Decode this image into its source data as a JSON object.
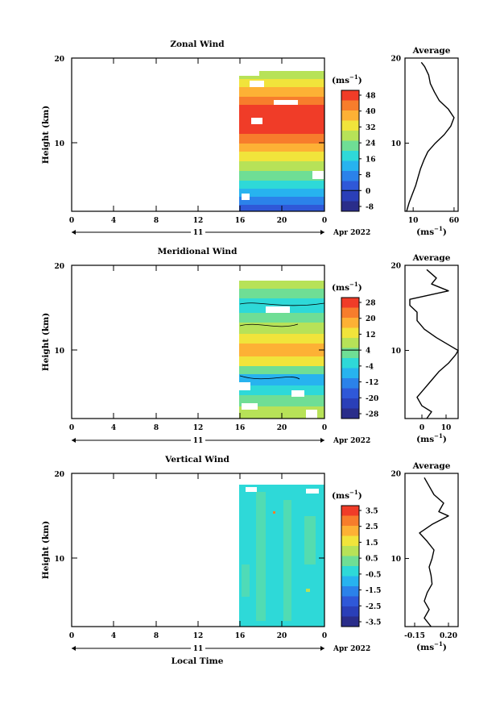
{
  "chart_data": [
    {
      "type": "heatmap",
      "title": "Zonal Wind",
      "ylabel": "Height (km)",
      "yticks": [
        "20",
        "10"
      ],
      "xticks": [
        "0",
        "4",
        "8",
        "12",
        "16",
        "20",
        "0"
      ],
      "date_day": "11",
      "date_month": "Apr 2022",
      "colorbar": {
        "unit_base": "(ms",
        "unit_exp": "−1",
        "unit_close": ")",
        "labels": [
          "48",
          "40",
          "32",
          "24",
          "16",
          "8",
          "0",
          "-8"
        ],
        "colors": [
          "#f03c28",
          "#f77d2c",
          "#fdb135",
          "#f1e43b",
          "#b7e258",
          "#6fde95",
          "#2ed9d8",
          "#27b3ef",
          "#2b82ea",
          "#2f58d8",
          "#2a3fb8",
          "#2a2d8a"
        ]
      },
      "profile": {
        "title": "Average",
        "yticks": [
          "20",
          "10"
        ],
        "xticks": [
          "10",
          "60"
        ],
        "xlabel_base": "(ms",
        "xlabel_exp": "−1",
        "xlabel_close": ")",
        "xlim": [
          0,
          65
        ],
        "ylim": [
          2,
          20
        ],
        "height_km": [
          2.0,
          3.0,
          4.0,
          5.0,
          6.0,
          7.0,
          8.0,
          9.0,
          10.0,
          11.0,
          12.0,
          13.0,
          14.0,
          15.0,
          16.0,
          17.0,
          18.0,
          19.0,
          19.5
        ],
        "speed": [
          2,
          5,
          9,
          13,
          16,
          19,
          23,
          28,
          37,
          48,
          56,
          60,
          53,
          42,
          36,
          31,
          29,
          24,
          20
        ]
      }
    },
    {
      "type": "heatmap",
      "title": "Meridional Wind",
      "ylabel": "Height (km)",
      "yticks": [
        "20",
        "10"
      ],
      "xticks": [
        "0",
        "4",
        "8",
        "12",
        "16",
        "20",
        "0"
      ],
      "date_day": "11",
      "date_month": "Apr 2022",
      "colorbar": {
        "unit_base": "(ms",
        "unit_exp": "−1",
        "unit_close": ")",
        "labels": [
          "28",
          "20",
          "12",
          "4",
          "-4",
          "-12",
          "-20",
          "-28"
        ],
        "colors": [
          "#f03c28",
          "#f77d2c",
          "#fdb135",
          "#f1e43b",
          "#b7e258",
          "#6fde95",
          "#2ed9d8",
          "#27b3ef",
          "#2b82ea",
          "#2f58d8",
          "#2a3fb8",
          "#2a2d8a"
        ]
      },
      "profile": {
        "title": "Average",
        "yticks": [
          "20",
          "10"
        ],
        "xticks": [
          "0",
          "10"
        ],
        "xlabel_base": "(ms",
        "xlabel_exp": "−1",
        "xlabel_close": ")",
        "xlim": [
          -7,
          15
        ],
        "ylim": [
          2,
          20
        ],
        "height_km": [
          2.0,
          2.8,
          3.5,
          4.5,
          5.5,
          6.5,
          7.5,
          8.5,
          9.5,
          10.0,
          10.5,
          11.5,
          12.5,
          13.5,
          14.5,
          15.3,
          16.0,
          17.0,
          17.8,
          18.5,
          19.5
        ],
        "speed": [
          2,
          4,
          0,
          -2,
          1,
          4,
          7,
          11,
          14,
          15,
          12,
          6,
          1,
          -2,
          -2,
          -5,
          -5,
          11,
          4,
          6,
          2
        ]
      }
    },
    {
      "type": "heatmap",
      "title": "Vertical Wind",
      "ylabel": "Height (km)",
      "yticks": [
        "20",
        "10"
      ],
      "xticks": [
        "0",
        "4",
        "8",
        "12",
        "16",
        "20",
        "0"
      ],
      "xlabel": "Local Time",
      "date_day": "11",
      "date_month": "Apr 2022",
      "colorbar": {
        "unit_base": "(ms",
        "unit_exp": "−1",
        "unit_close": ")",
        "labels": [
          "3.5",
          "2.5",
          "1.5",
          "0.5",
          "-0.5",
          "-1.5",
          "-2.5",
          "-3.5"
        ],
        "colors": [
          "#f03c28",
          "#f77d2c",
          "#fdb135",
          "#f1e43b",
          "#b7e258",
          "#6fde95",
          "#2ed9d8",
          "#27b3ef",
          "#2b82ea",
          "#2f58d8",
          "#2a3fb8",
          "#2a2d8a"
        ]
      },
      "profile": {
        "title": "Average",
        "yticks": [
          "20",
          "10"
        ],
        "xticks": [
          "-0.15",
          "0.20"
        ],
        "xlabel_base": "(ms",
        "xlabel_exp": "−1",
        "xlabel_close": ")",
        "xlim": [
          -0.25,
          0.3
        ],
        "ylim": [
          2,
          20
        ],
        "height_km": [
          2.0,
          3.0,
          4.0,
          5.0,
          6.0,
          7.0,
          8.0,
          9.0,
          10.0,
          11.0,
          12.0,
          13.0,
          14.0,
          15.0,
          15.5,
          16.5,
          17.5,
          18.5,
          19.5
        ],
        "speed": [
          0.02,
          -0.05,
          0.0,
          -0.05,
          -0.02,
          0.03,
          0.02,
          0.0,
          0.03,
          0.05,
          -0.02,
          -0.1,
          0.03,
          0.2,
          0.1,
          0.15,
          0.05,
          0.0,
          -0.05
        ]
      }
    }
  ]
}
